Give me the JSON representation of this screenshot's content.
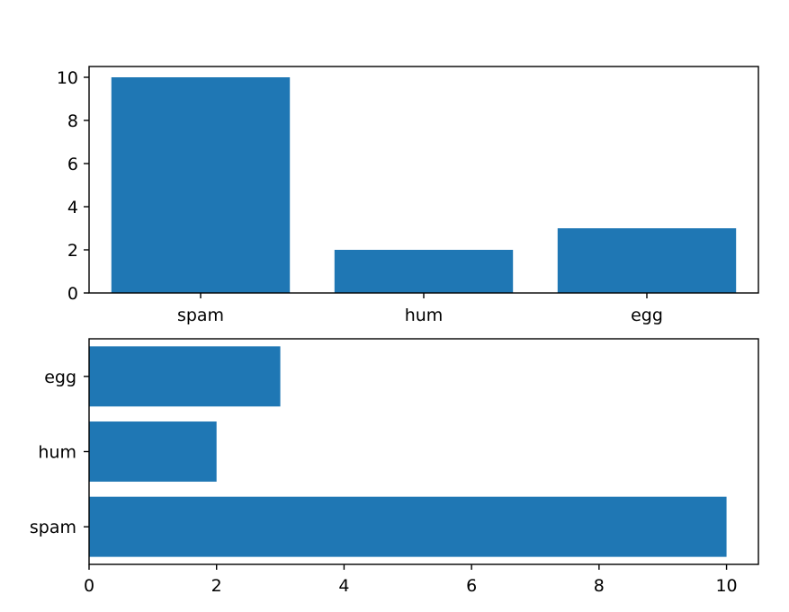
{
  "chart_data": [
    {
      "type": "bar",
      "orientation": "vertical",
      "categories": [
        "spam",
        "hum",
        "egg"
      ],
      "values": [
        10,
        2,
        3
      ],
      "ylim": [
        0,
        10.5
      ],
      "yticks": [
        "0",
        "2",
        "4",
        "6",
        "8",
        "10"
      ],
      "grid": false,
      "color": "#1f77b4"
    },
    {
      "type": "bar",
      "orientation": "horizontal",
      "categories": [
        "spam",
        "hum",
        "egg"
      ],
      "values": [
        10,
        2,
        3
      ],
      "xlim": [
        0,
        10.5
      ],
      "xticks": [
        "0",
        "2",
        "4",
        "6",
        "8",
        "10"
      ],
      "grid": false,
      "color": "#1f77b4"
    }
  ]
}
